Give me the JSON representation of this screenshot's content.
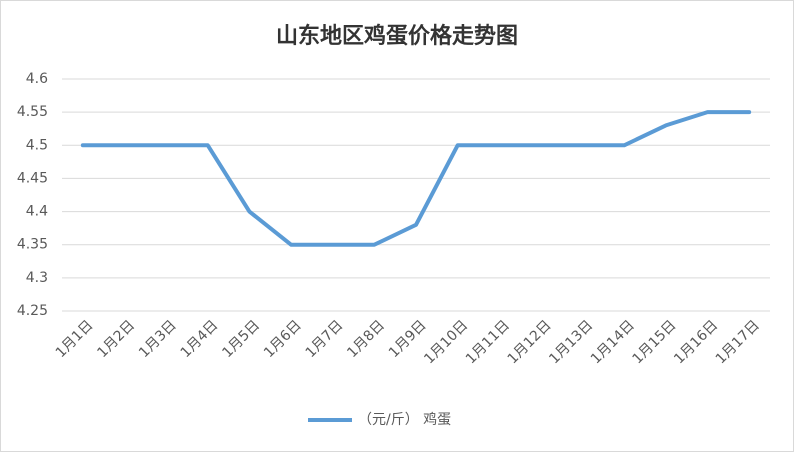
{
  "chart_data": {
    "type": "line",
    "title": "山东地区鸡蛋价格走势图",
    "categories": [
      "1月1日",
      "1月2日",
      "1月3日",
      "1月4日",
      "1月5日",
      "1月6日",
      "1月7日",
      "1月8日",
      "1月9日",
      "1月10日",
      "1月11日",
      "1月12日",
      "1月13日",
      "1月14日",
      "1月15日",
      "1月16日",
      "1月17日"
    ],
    "series": [
      {
        "name": "（元/斤） 鸡蛋",
        "color": "#5b9bd5",
        "values": [
          4.5,
          4.5,
          4.5,
          4.5,
          4.4,
          4.35,
          4.35,
          4.35,
          4.38,
          4.5,
          4.5,
          4.5,
          4.5,
          4.5,
          4.53,
          4.55,
          4.55
        ]
      }
    ],
    "ylim": [
      4.25,
      4.6
    ],
    "yticks": [
      4.25,
      4.3,
      4.35,
      4.4,
      4.45,
      4.5,
      4.55,
      4.6
    ],
    "grid": true,
    "legend": "bottom"
  }
}
